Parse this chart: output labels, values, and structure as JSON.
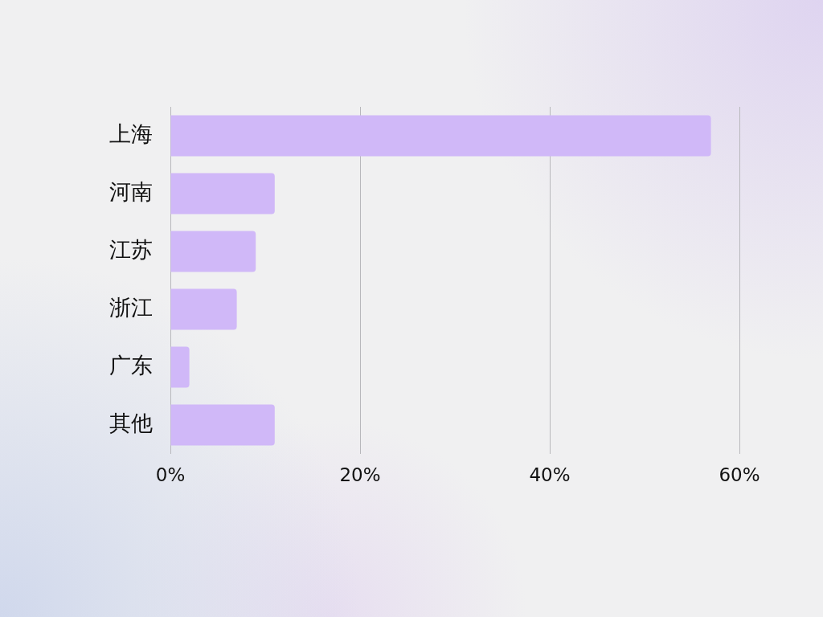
{
  "chart_data": {
    "type": "bar",
    "orientation": "horizontal",
    "categories": [
      "上海",
      "河南",
      "江苏",
      "浙江",
      "广东",
      "其他"
    ],
    "values": [
      57,
      11,
      9,
      7,
      2,
      11
    ],
    "color": "#d0b8f8",
    "xlim": [
      0,
      60
    ],
    "xticks": [
      {
        "value": 0,
        "label": "0%"
      },
      {
        "value": 20,
        "label": "20%"
      },
      {
        "value": 40,
        "label": "40%"
      },
      {
        "value": 60,
        "label": "60%"
      }
    ],
    "grid": "x"
  }
}
